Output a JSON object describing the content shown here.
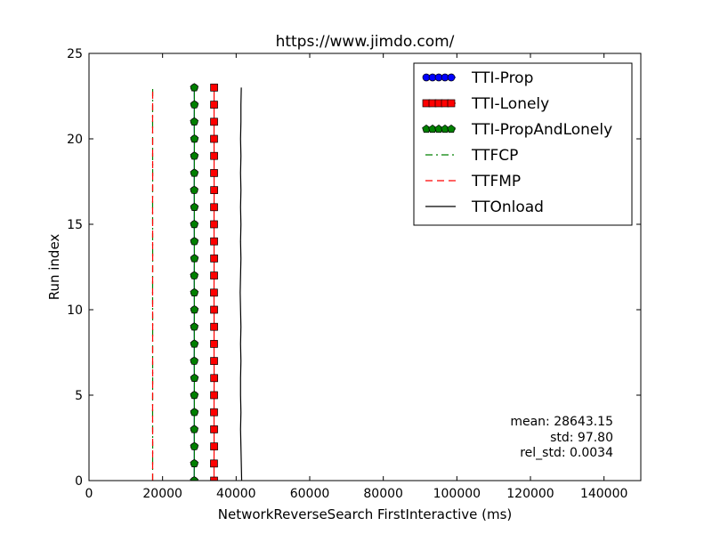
{
  "chart_data": {
    "type": "line",
    "title": "https://www.jimdo.com/",
    "xlabel": "NetworkReverseSearch FirstInteractive (ms)",
    "ylabel": "Run index",
    "xlim": [
      0,
      150000
    ],
    "ylim": [
      0,
      25
    ],
    "xticks": [
      0,
      20000,
      40000,
      60000,
      80000,
      100000,
      120000,
      140000
    ],
    "xtick_labels": [
      "0",
      "20000",
      "40000",
      "60000",
      "80000",
      "100000",
      "120000",
      "140000"
    ],
    "yticks": [
      0,
      5,
      10,
      15,
      20,
      25
    ],
    "ytick_labels": [
      "0",
      "5",
      "10",
      "15",
      "20",
      "25"
    ],
    "grid": false,
    "legend_position": "top-right",
    "series": [
      {
        "name": "TTI-Prop",
        "color": "#0000ff",
        "marker": "circle",
        "linestyle": "solid",
        "y": [
          0,
          1,
          2,
          3,
          4,
          5,
          6,
          7,
          8,
          9,
          10,
          11,
          12,
          13,
          14,
          15,
          16,
          17,
          18,
          19,
          20,
          21,
          22,
          23
        ],
        "x": [
          28600,
          28620,
          28640,
          28610,
          28650,
          28630,
          28660,
          28600,
          28640,
          28620,
          28650,
          28630,
          28610,
          28660,
          28640,
          28620,
          28650,
          28600,
          28630,
          28640,
          28660,
          28610,
          28650,
          28620
        ]
      },
      {
        "name": "TTI-Lonely",
        "color": "#ff0000",
        "marker": "square",
        "linestyle": "solid",
        "y": [
          0,
          1,
          2,
          3,
          4,
          5,
          6,
          7,
          8,
          9,
          10,
          11,
          12,
          13,
          14,
          15,
          16,
          17,
          18,
          19,
          20,
          21,
          22,
          23
        ],
        "x": [
          34000,
          33980,
          34010,
          34000,
          33990,
          34000,
          34020,
          34000,
          33990,
          34010,
          34000,
          33980,
          34000,
          34010,
          34000,
          33990,
          34000,
          34020,
          34000,
          34010,
          33990,
          34000,
          34000,
          34010
        ]
      },
      {
        "name": "TTI-PropAndLonely",
        "color": "#008000",
        "marker": "pentagon",
        "linestyle": "solid",
        "y": [
          0,
          1,
          2,
          3,
          4,
          5,
          6,
          7,
          8,
          9,
          10,
          11,
          12,
          13,
          14,
          15,
          16,
          17,
          18,
          19,
          20,
          21,
          22,
          23
        ],
        "x": [
          28600,
          28620,
          28640,
          28610,
          28650,
          28630,
          28660,
          28600,
          28640,
          28620,
          28650,
          28630,
          28610,
          28660,
          28640,
          28620,
          28650,
          28600,
          28630,
          28640,
          28660,
          28610,
          28650,
          28620
        ]
      },
      {
        "name": "TTFCP",
        "color": "#008000",
        "marker": "none",
        "linestyle": "dashdot",
        "y": [
          0,
          1,
          2,
          3,
          4,
          5,
          6,
          7,
          8,
          9,
          10,
          11,
          12,
          13,
          14,
          15,
          16,
          17,
          18,
          19,
          20,
          21,
          22,
          23
        ],
        "x": [
          17300,
          17300,
          17310,
          17300,
          17290,
          17300,
          17310,
          17300,
          17300,
          17310,
          17300,
          17290,
          17300,
          17310,
          17300,
          17300,
          17290,
          17300,
          17310,
          17300,
          17300,
          17290,
          17300,
          17310
        ]
      },
      {
        "name": "TTFMP",
        "color": "#ff0000",
        "marker": "none",
        "linestyle": "dashed",
        "y": [
          0,
          1,
          2,
          3,
          4,
          5,
          6,
          7,
          8,
          9,
          10,
          11,
          12,
          13,
          14,
          15,
          16,
          17,
          18,
          19,
          20,
          21,
          22,
          23
        ],
        "x": [
          17300,
          17300,
          17310,
          17300,
          17290,
          17300,
          17310,
          17300,
          17300,
          17310,
          17300,
          17290,
          17300,
          17310,
          17300,
          17300,
          17290,
          17300,
          17310,
          17300,
          17300,
          17290,
          17300,
          17310
        ]
      },
      {
        "name": "TTOnload",
        "color": "#000000",
        "marker": "none",
        "linestyle": "solid",
        "y": [
          0,
          1,
          2,
          3,
          4,
          5,
          6,
          7,
          8,
          9,
          10,
          11,
          12,
          13,
          14,
          15,
          16,
          17,
          18,
          19,
          20,
          21,
          22,
          23
        ],
        "x": [
          41500,
          41400,
          41300,
          41200,
          41300,
          41200,
          41200,
          41300,
          41200,
          41300,
          41200,
          41100,
          41200,
          41300,
          41200,
          41300,
          41200,
          41300,
          41200,
          41300,
          41200,
          41300,
          41300,
          41400
        ]
      }
    ],
    "stats": {
      "mean": "mean: 28643.15",
      "std": "std: 97.80",
      "rel_std": "rel_std: 0.0034"
    }
  }
}
